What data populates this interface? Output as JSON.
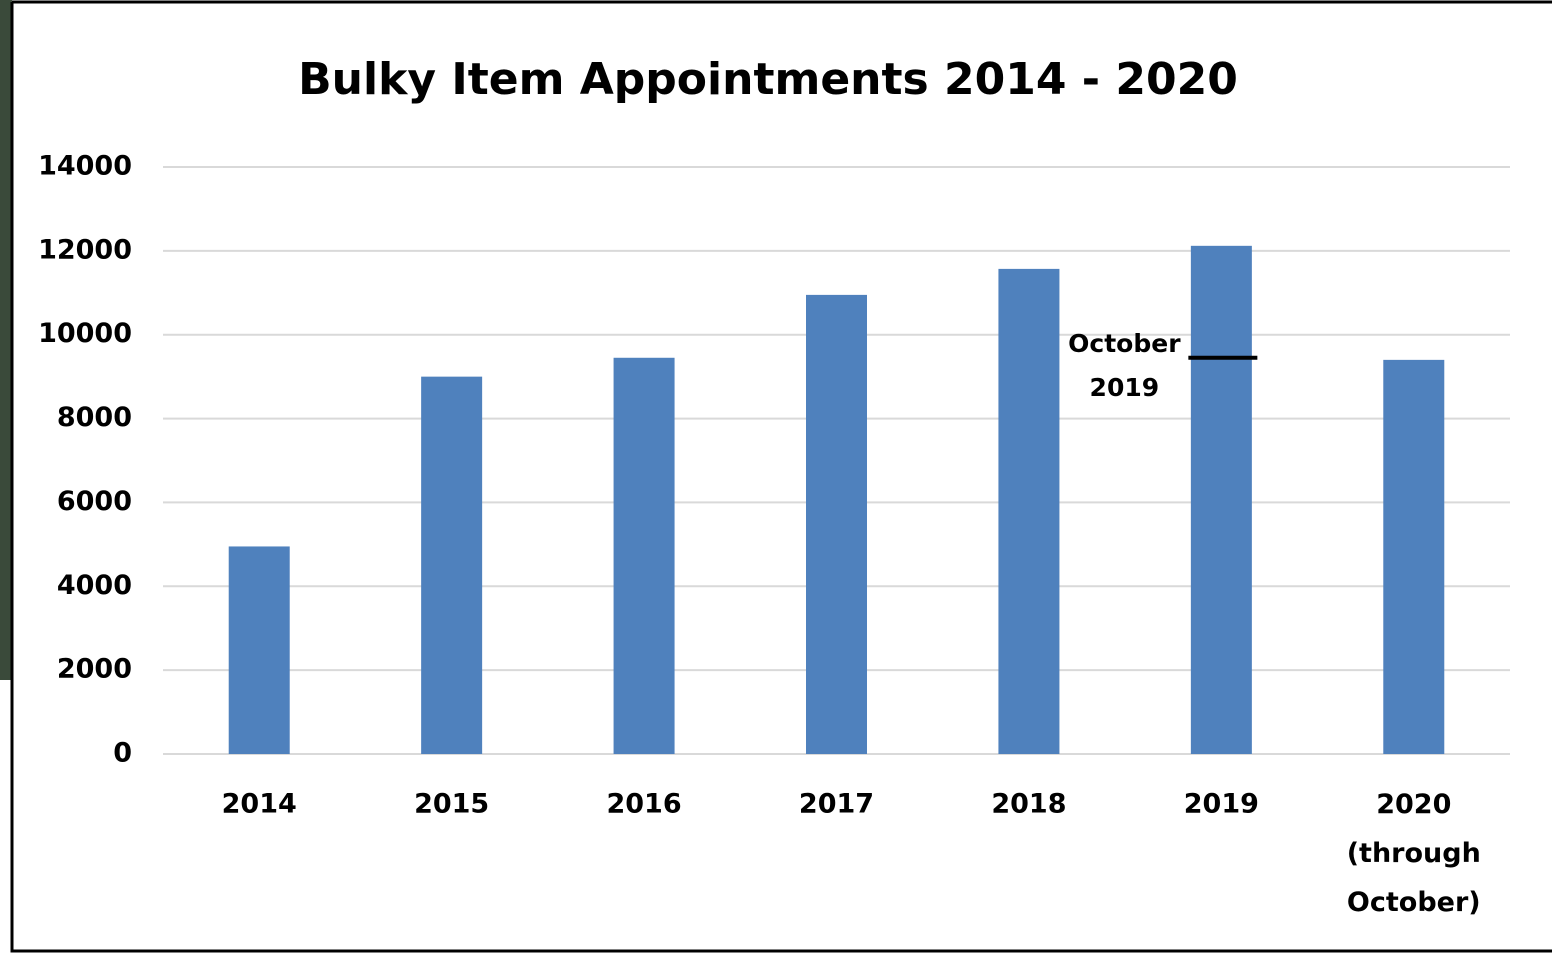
{
  "chart_data": {
    "type": "bar",
    "title": "Bulky Item Appointments 2014 - 2020",
    "categories": [
      "2014",
      "2015",
      "2016",
      "2017",
      "2018",
      "2019",
      "2020 (through October)"
    ],
    "values": [
      4950,
      9000,
      9450,
      10950,
      11570,
      12120,
      9400
    ],
    "color": "#4f81bd",
    "ylim": [
      0,
      14000
    ],
    "yticks": [
      0,
      2000,
      4000,
      6000,
      8000,
      10000,
      12000,
      14000
    ],
    "grid": true,
    "annotations": [
      {
        "text": "October 2019",
        "value": 9450,
        "category": 5
      }
    ]
  }
}
